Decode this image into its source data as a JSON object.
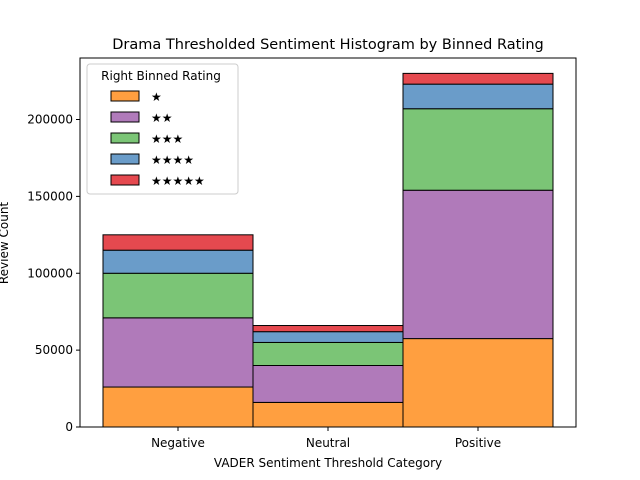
{
  "chart_data": {
    "type": "bar",
    "stacked": true,
    "title": "Drama Thresholded Sentiment Histogram by Binned Rating",
    "xlabel": "VADER Sentiment Threshold Category",
    "ylabel": "Review Count",
    "categories": [
      "Negative",
      "Neutral",
      "Positive"
    ],
    "ylim": [
      0,
      240000
    ],
    "yticks": [
      0,
      50000,
      100000,
      150000,
      200000
    ],
    "grid": false,
    "legend": {
      "title": "Right Binned Rating",
      "placement": "top-left"
    },
    "series": [
      {
        "name": "★",
        "color": "#ff9f40",
        "values": [
          26000,
          16000,
          57500
        ]
      },
      {
        "name": "★★",
        "color": "#b07aba",
        "values": [
          45000,
          24000,
          96500
        ]
      },
      {
        "name": "★★★",
        "color": "#7bc576",
        "values": [
          29000,
          15000,
          53000
        ]
      },
      {
        "name": "★★★★",
        "color": "#6a9cc9",
        "values": [
          15000,
          7000,
          16000
        ]
      },
      {
        "name": "★★★★★",
        "color": "#e5494f",
        "values": [
          10000,
          4000,
          7000
        ]
      }
    ]
  }
}
